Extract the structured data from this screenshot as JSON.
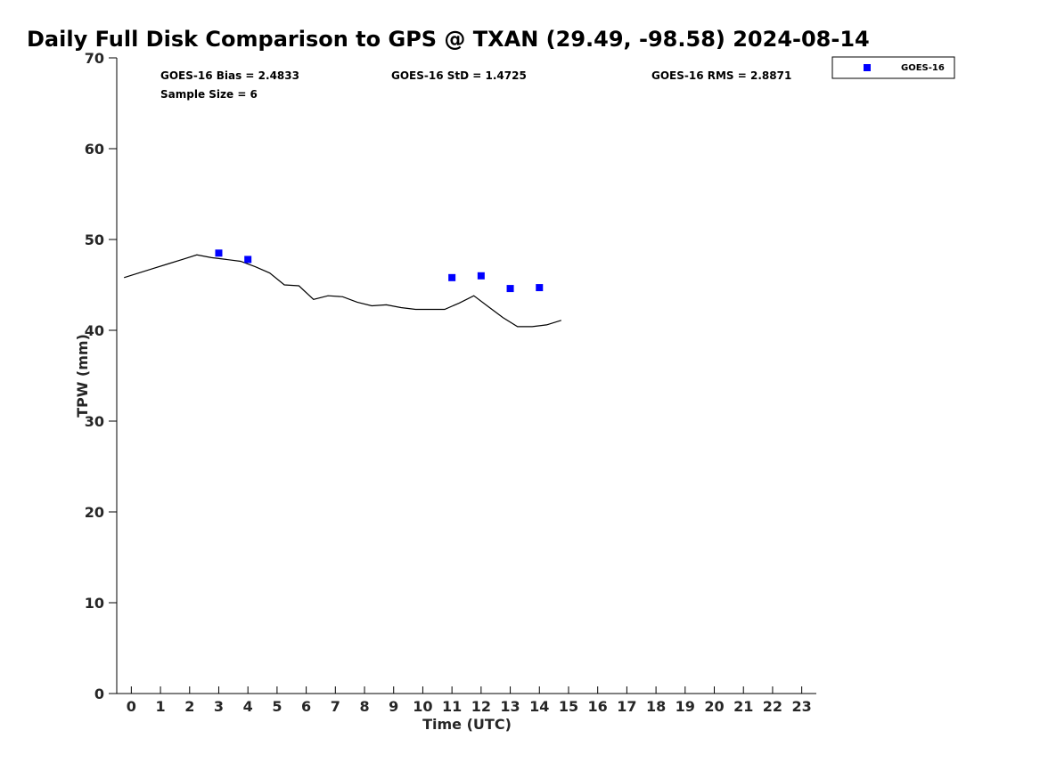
{
  "chart_data": {
    "type": "scatter",
    "title": "Daily Full Disk Comparison to GPS @ TXAN (29.49, -98.58) 2024-08-14",
    "xlabel": "Time (UTC)",
    "ylabel": "TPW (mm)",
    "xlim": [
      -0.5,
      23.5
    ],
    "ylim": [
      0,
      70
    ],
    "x_ticks": [
      0,
      1,
      2,
      3,
      4,
      5,
      6,
      7,
      8,
      9,
      10,
      11,
      12,
      13,
      14,
      15,
      16,
      17,
      18,
      19,
      20,
      21,
      22,
      23
    ],
    "y_ticks": [
      0,
      10,
      20,
      30,
      40,
      50,
      60,
      70
    ],
    "grid": false,
    "legend_position": "top-right",
    "annotations": {
      "bias": "GOES-16 Bias = 2.4833",
      "std": "GOES-16 StD = 1.4725",
      "rms": "GOES-16 RMS = 2.8871",
      "sample_size": "Sample Size = 6"
    },
    "series": [
      {
        "name": "GOES-16",
        "type": "scatter",
        "marker": "square",
        "color": "#0000ff",
        "x": [
          3,
          4,
          11,
          12,
          13,
          14
        ],
        "y": [
          48.5,
          47.8,
          45.8,
          46.0,
          44.6,
          44.7
        ]
      },
      {
        "type": "line",
        "color": "#000000",
        "x": [
          -0.25,
          0.25,
          0.75,
          1.25,
          1.75,
          2.25,
          2.75,
          3.25,
          3.75,
          4.25,
          4.75,
          5.25,
          5.75,
          6.25,
          6.75,
          7.25,
          7.75,
          8.25,
          8.75,
          9.25,
          9.75,
          10.25,
          10.75,
          11.25,
          11.75,
          12.25,
          12.75,
          13.25,
          13.75,
          14.25,
          14.75
        ],
        "y": [
          45.8,
          46.3,
          46.8,
          47.3,
          47.8,
          48.3,
          48.0,
          47.8,
          47.6,
          47.0,
          46.3,
          45.0,
          44.9,
          43.4,
          43.8,
          43.7,
          43.1,
          42.7,
          42.8,
          42.5,
          42.3,
          42.3,
          42.3,
          43.0,
          43.8,
          42.6,
          41.4,
          40.4,
          40.4,
          40.6,
          41.1
        ]
      }
    ]
  }
}
